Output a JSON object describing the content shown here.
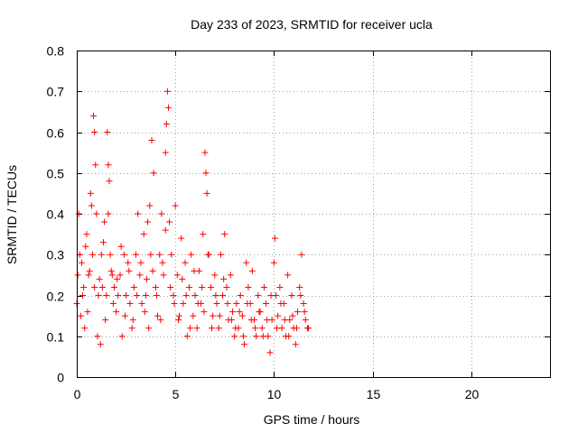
{
  "chart_data": {
    "type": "scatter",
    "title": "Day 233 of 2023, SRMTID for receiver ucla",
    "xlabel": "GPS time / hours",
    "ylabel": "SRMTID / TECUs",
    "xlim": [
      0,
      24
    ],
    "ylim": [
      0,
      0.8
    ],
    "xticks": [
      0,
      5,
      10,
      15,
      20
    ],
    "yticks": [
      0,
      0.1,
      0.2,
      0.3,
      0.4,
      0.5,
      0.6,
      0.7,
      0.8
    ],
    "grid": true,
    "marker": "+",
    "color": "#ff0000",
    "series": [
      {
        "name": "SRMTID",
        "x": [
          0.0,
          0.1,
          0.2,
          0.25,
          0.35,
          0.4,
          0.5,
          0.6,
          0.7,
          0.8,
          0.85,
          0.9,
          0.95,
          1.0,
          1.1,
          1.2,
          1.25,
          1.3,
          1.4,
          1.5,
          1.55,
          1.6,
          1.65,
          1.7,
          1.8,
          1.9,
          2.0,
          2.1,
          2.2,
          2.3,
          2.4,
          2.5,
          2.6,
          2.7,
          2.8,
          2.9,
          3.0,
          3.1,
          3.2,
          3.3,
          3.4,
          3.5,
          3.6,
          3.7,
          3.75,
          3.8,
          3.9,
          4.0,
          4.1,
          4.2,
          4.3,
          4.4,
          4.5,
          4.55,
          4.6,
          4.65,
          4.7,
          4.8,
          4.9,
          5.0,
          5.1,
          5.2,
          5.3,
          5.4,
          5.5,
          5.6,
          5.7,
          5.8,
          5.9,
          6.0,
          6.1,
          6.2,
          6.3,
          6.4,
          6.5,
          6.55,
          6.6,
          6.7,
          6.8,
          6.9,
          7.0,
          7.1,
          7.2,
          7.3,
          7.4,
          7.5,
          7.6,
          7.7,
          7.8,
          7.9,
          8.0,
          8.1,
          8.2,
          8.3,
          8.4,
          8.5,
          8.6,
          8.7,
          8.8,
          8.9,
          9.0,
          9.1,
          9.2,
          9.3,
          9.4,
          9.5,
          9.6,
          9.7,
          9.8,
          9.9,
          10.0,
          10.05,
          10.1,
          10.2,
          10.3,
          10.4,
          10.5,
          10.6,
          10.7,
          10.8,
          10.9,
          11.0,
          11.1,
          11.2,
          11.3,
          11.4,
          11.5,
          11.6,
          11.7,
          0.05,
          0.15,
          0.3,
          0.45,
          0.55,
          0.65,
          0.75,
          0.9,
          1.05,
          1.15,
          1.35,
          1.45,
          1.6,
          1.75,
          1.85,
          2.05,
          2.25,
          2.45,
          2.65,
          2.85,
          3.05,
          3.25,
          3.45,
          3.55,
          3.65,
          3.85,
          4.05,
          4.25,
          4.35,
          4.5,
          4.75,
          4.95,
          5.15,
          5.35,
          5.55,
          5.75,
          5.95,
          6.15,
          6.35,
          6.45,
          6.65,
          6.85,
          7.05,
          7.25,
          7.45,
          7.65,
          7.85,
          8.05,
          8.25,
          8.45,
          8.65,
          8.85,
          9.05,
          9.25,
          9.45,
          9.65,
          9.85,
          10.15,
          10.35,
          10.55,
          10.75,
          10.95,
          11.15,
          11.35,
          11.55,
          11.75
        ],
        "y": [
          0.18,
          0.4,
          0.15,
          0.28,
          0.22,
          0.12,
          0.35,
          0.25,
          0.45,
          0.3,
          0.64,
          0.6,
          0.52,
          0.4,
          0.2,
          0.08,
          0.3,
          0.22,
          0.38,
          0.2,
          0.6,
          0.52,
          0.48,
          0.3,
          0.25,
          0.22,
          0.16,
          0.2,
          0.25,
          0.1,
          0.3,
          0.2,
          0.28,
          0.18,
          0.12,
          0.22,
          0.3,
          0.4,
          0.25,
          0.18,
          0.35,
          0.2,
          0.38,
          0.42,
          0.3,
          0.58,
          0.5,
          0.22,
          0.15,
          0.3,
          0.4,
          0.25,
          0.55,
          0.62,
          0.7,
          0.66,
          0.38,
          0.3,
          0.2,
          0.42,
          0.25,
          0.15,
          0.34,
          0.18,
          0.28,
          0.1,
          0.22,
          0.3,
          0.15,
          0.2,
          0.12,
          0.26,
          0.18,
          0.35,
          0.55,
          0.5,
          0.45,
          0.3,
          0.22,
          0.15,
          0.25,
          0.18,
          0.12,
          0.3,
          0.2,
          0.35,
          0.22,
          0.14,
          0.25,
          0.16,
          0.1,
          0.18,
          0.12,
          0.2,
          0.15,
          0.08,
          0.28,
          0.22,
          0.18,
          0.26,
          0.14,
          0.1,
          0.2,
          0.16,
          0.12,
          0.22,
          0.18,
          0.1,
          0.06,
          0.14,
          0.28,
          0.34,
          0.2,
          0.15,
          0.22,
          0.12,
          0.18,
          0.1,
          0.25,
          0.14,
          0.2,
          0.12,
          0.08,
          0.16,
          0.22,
          0.3,
          0.18,
          0.14,
          0.12,
          0.25,
          0.3,
          0.2,
          0.32,
          0.16,
          0.26,
          0.42,
          0.22,
          0.1,
          0.24,
          0.33,
          0.14,
          0.4,
          0.26,
          0.18,
          0.24,
          0.32,
          0.15,
          0.26,
          0.14,
          0.2,
          0.28,
          0.16,
          0.24,
          0.12,
          0.26,
          0.2,
          0.14,
          0.28,
          0.36,
          0.22,
          0.18,
          0.14,
          0.24,
          0.2,
          0.12,
          0.26,
          0.18,
          0.22,
          0.16,
          0.3,
          0.12,
          0.2,
          0.15,
          0.24,
          0.18,
          0.14,
          0.12,
          0.16,
          0.1,
          0.18,
          0.14,
          0.12,
          0.16,
          0.1,
          0.14,
          0.2,
          0.12,
          0.18,
          0.14,
          0.1,
          0.15,
          0.12,
          0.2,
          0.16,
          0.12
        ]
      }
    ]
  }
}
